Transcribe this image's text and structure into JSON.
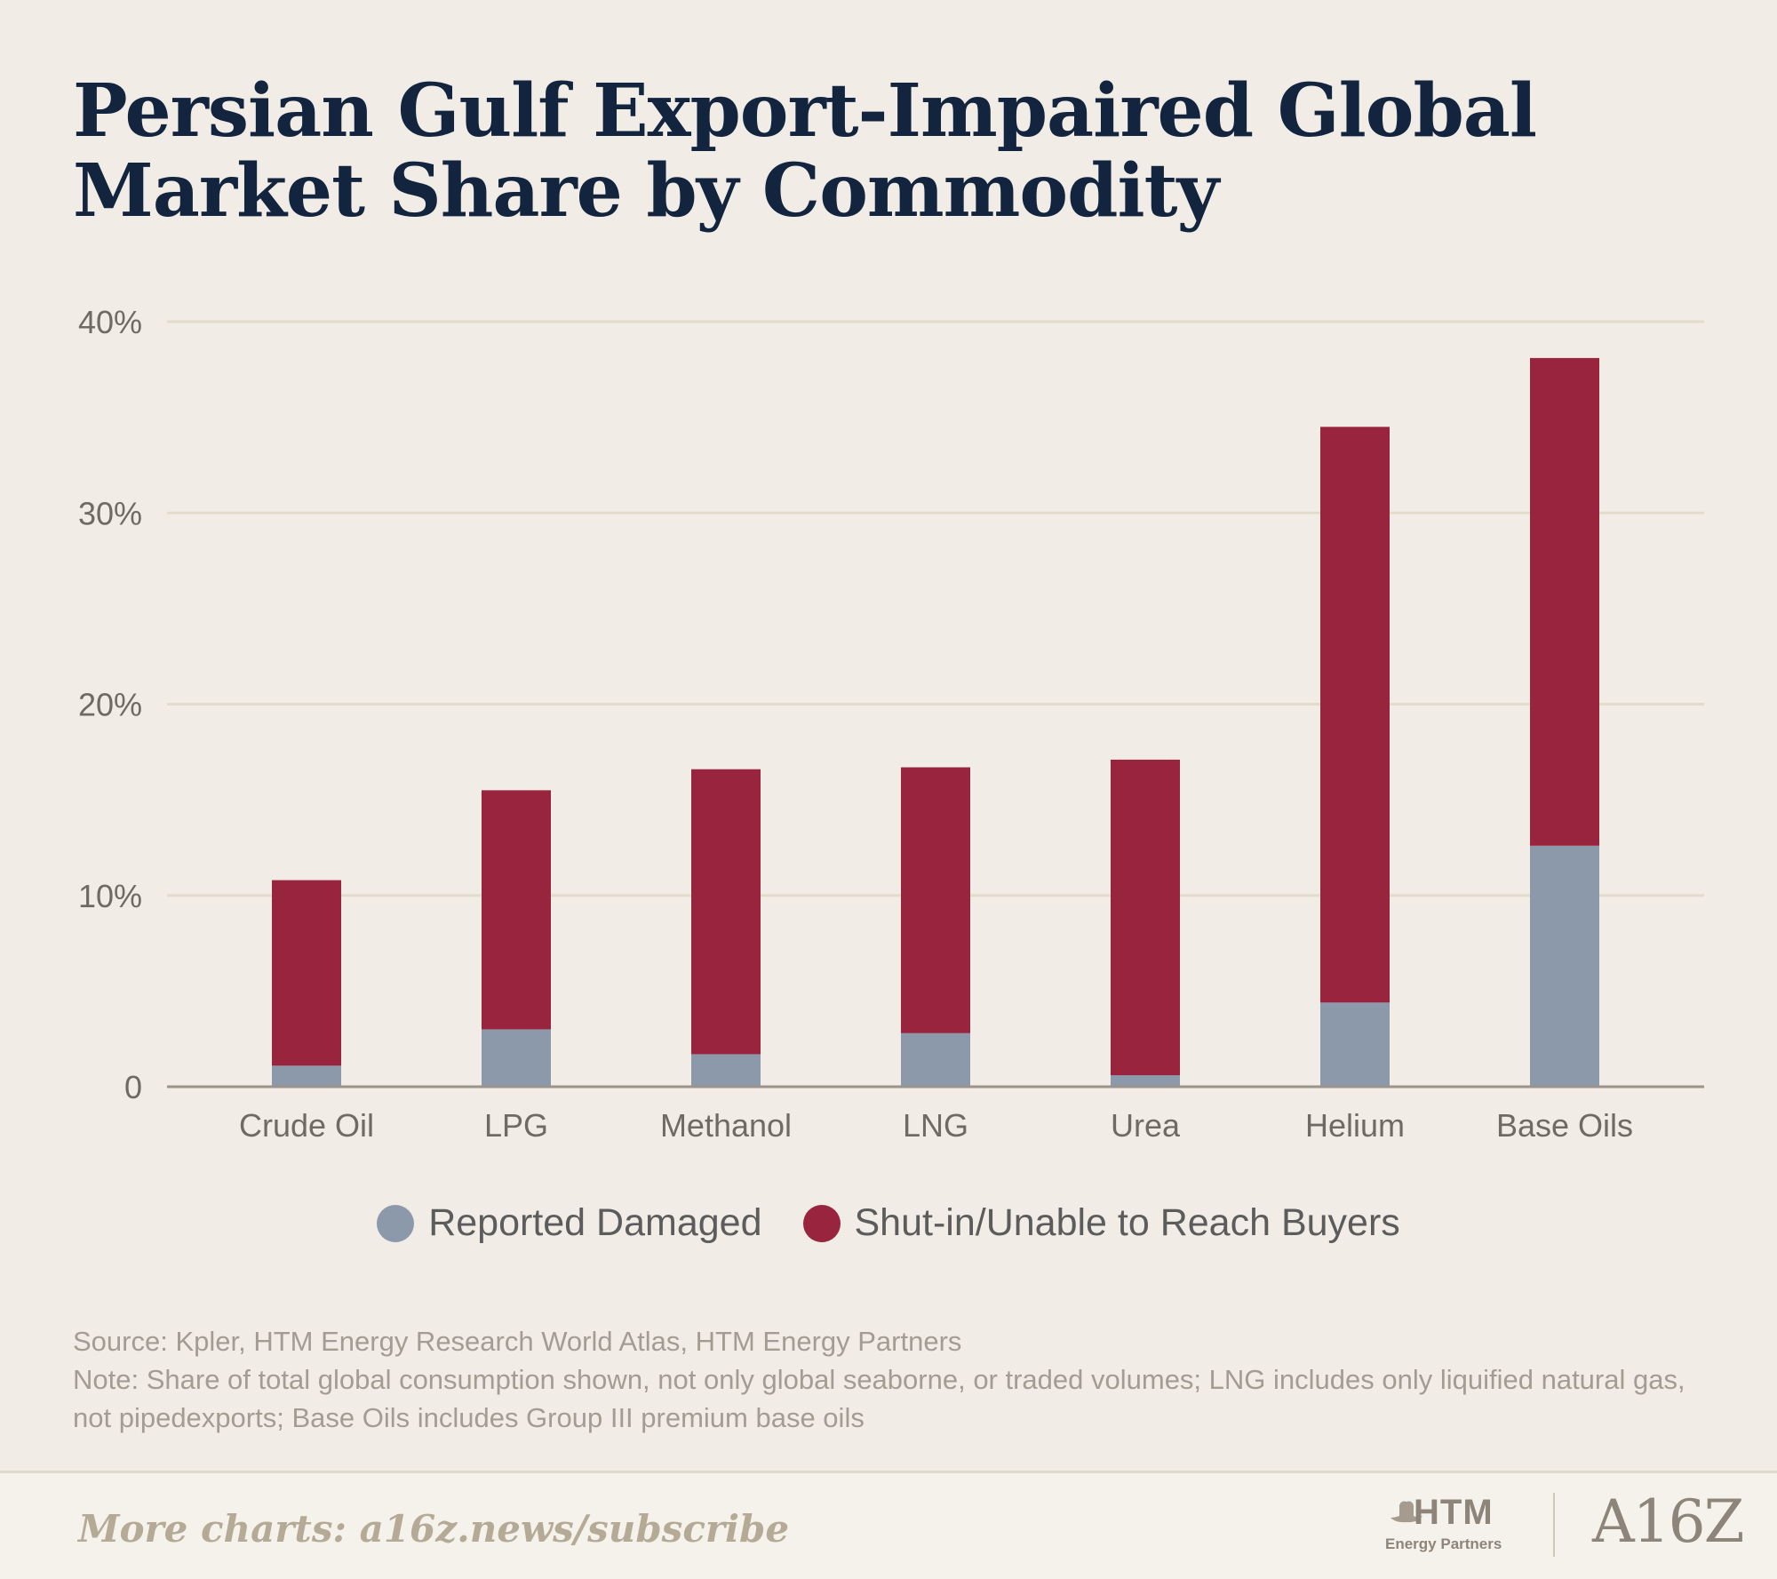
{
  "title": "Persian Gulf Export-Impaired Global Market Share by Commodity",
  "colors": {
    "background": "#f1ede6",
    "reported_damaged": "#8c99ab",
    "shut_in": "#98243e",
    "grid": "#e2dccb",
    "axis": "#9a938a",
    "tick_text": "#6e6a64"
  },
  "chart_data": {
    "type": "bar",
    "stacked": true,
    "title": "Persian Gulf Export-Impaired Global Market Share by Commodity",
    "xlabel": "",
    "ylabel": "",
    "ylim": [
      0,
      40
    ],
    "yticks": [
      0,
      10,
      20,
      30,
      40
    ],
    "ytick_labels": [
      "0",
      "10%",
      "20%",
      "30%",
      "40%"
    ],
    "grid": true,
    "legend_position": "bottom-center",
    "categories": [
      "Crude Oil",
      "LPG",
      "Methanol",
      "LNG",
      "Urea",
      "Helium",
      "Base Oils"
    ],
    "series": [
      {
        "name": "Reported Damaged",
        "values": [
          1.1,
          3.0,
          1.7,
          2.8,
          0.6,
          4.4,
          12.6
        ]
      },
      {
        "name": "Shut-in/Unable to Reach Buyers",
        "values": [
          9.7,
          12.5,
          14.9,
          13.9,
          16.5,
          30.1,
          25.5
        ]
      }
    ]
  },
  "legend": {
    "reported_damaged": "Reported Damaged",
    "shut_in": "Shut-in/Unable to Reach Buyers"
  },
  "notes": {
    "source": "Source: Kpler, HTM Energy Research World Atlas, HTM Energy Partners",
    "note": "Note: Share of total global consumption shown, not only global seaborne, or traded volumes; LNG includes only liquified natural gas, not pipedexports; Base Oils includes Group III premium base oils"
  },
  "footer": {
    "cta": "More charts: a16z.news/subscribe",
    "htm_name": "HTM",
    "htm_sub": "Energy Partners",
    "a16z": "A16Z"
  }
}
